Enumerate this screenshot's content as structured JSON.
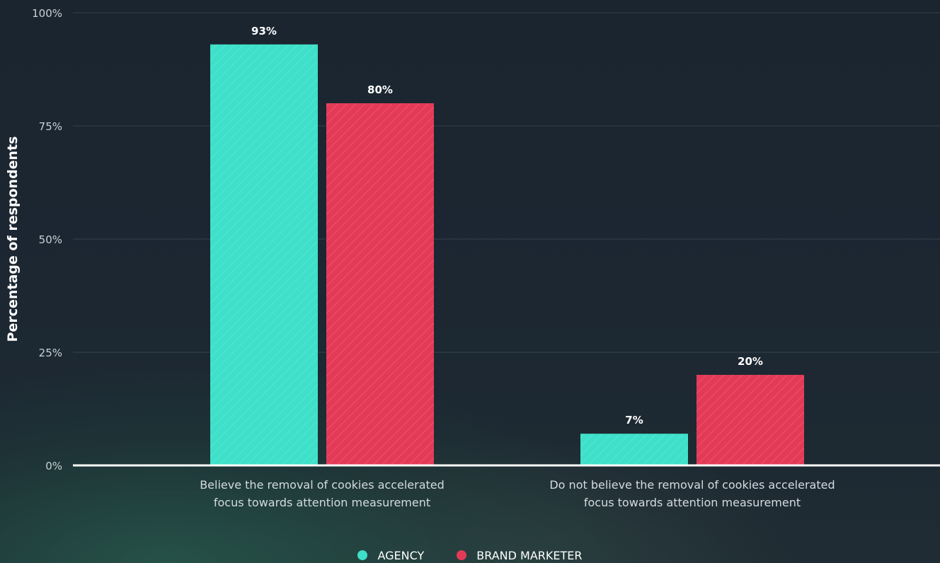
{
  "chart_data": {
    "type": "bar",
    "categories": [
      [
        "Believe the removal of cookies accelerated",
        "focus towards attention measurement"
      ],
      [
        "Do not believe the removal of cookies accelerated",
        "focus towards attention measurement"
      ]
    ],
    "series": [
      {
        "name": "AGENCY",
        "color": "#3ee0c9",
        "values": [
          93,
          7
        ],
        "labels": [
          "93%",
          "7%"
        ]
      },
      {
        "name": "BRAND MARKETER",
        "color": "#e43a57",
        "values": [
          80,
          20
        ],
        "labels": [
          "80%",
          "20%"
        ]
      }
    ],
    "ylabel": "Percentage of respondents",
    "ylim": [
      0,
      100
    ],
    "yticks": [
      0,
      25,
      50,
      75,
      100
    ],
    "ytick_labels": [
      "0%",
      "25%",
      "50%",
      "75%",
      "100%"
    ],
    "grid": true,
    "legend_position": "bottom-center"
  }
}
